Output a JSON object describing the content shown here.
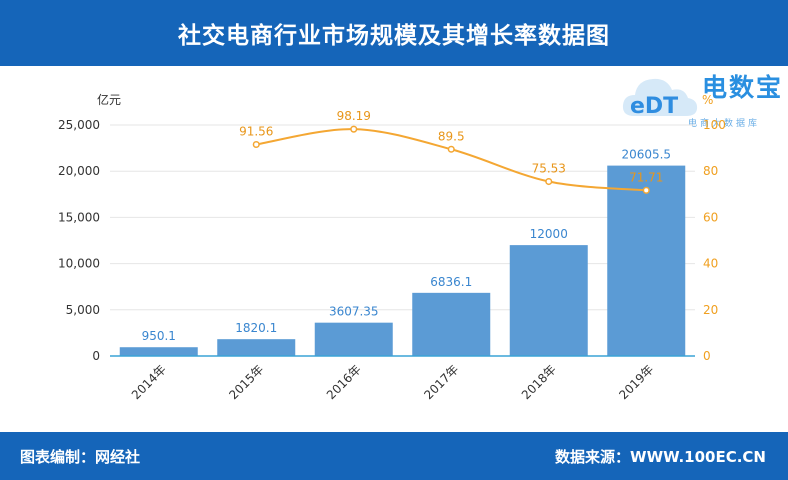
{
  "header": {
    "title": "社交电商行业市场规模及其增长率数据图"
  },
  "footer": {
    "left": "图表编制：网经社",
    "right": "数据来源：WWW.100EC.CN"
  },
  "logo": {
    "name": "电数宝",
    "tagline": "电商大数据库",
    "mark": "eDT"
  },
  "colors": {
    "header_bg": "#1565b9",
    "bar": "#5b9bd5",
    "line": "#f4a733",
    "right_axis": "#f0a020"
  },
  "chart_data": {
    "type": "bar",
    "categories": [
      "2014年",
      "2015年",
      "2016年",
      "2017年",
      "2018年",
      "2019年"
    ],
    "series": [
      {
        "values": [
          950.1,
          1820.1,
          3607.35,
          6836.1,
          12000,
          20605.5
        ],
        "type": "bar",
        "axis": "left",
        "labels": [
          "950.1",
          "1820.1",
          "3607.35",
          "6836.1",
          "12000",
          "20605.5"
        ]
      },
      {
        "values": [
          null,
          91.56,
          98.19,
          89.5,
          75.53,
          71.71
        ],
        "type": "line",
        "axis": "right",
        "labels": [
          "",
          "91.56",
          "98.19",
          "89.5",
          "75.53",
          "71.71"
        ]
      }
    ],
    "left_axis": {
      "unit": "亿元",
      "ylim": [
        0,
        25000
      ],
      "ticks": [
        "0",
        "5,000",
        "10,000",
        "15,000",
        "20,000",
        "25,000"
      ]
    },
    "right_axis": {
      "unit": "%",
      "ylim": [
        0,
        100
      ],
      "ticks": [
        "0",
        "20",
        "40",
        "60",
        "80",
        "100"
      ]
    },
    "grid": true,
    "legend": "none"
  }
}
